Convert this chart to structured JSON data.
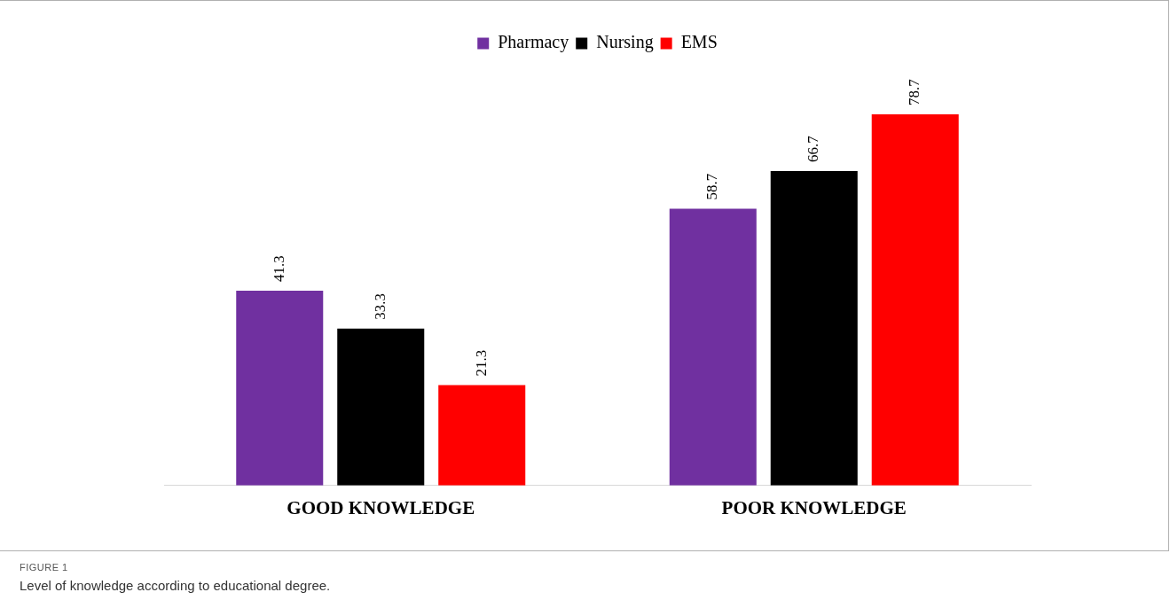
{
  "chart_data": {
    "type": "bar",
    "categories": [
      "GOOD KNOWLEDGE",
      "POOR KNOWLEDGE"
    ],
    "series": [
      {
        "name": "Pharmacy",
        "color": "#7030a0",
        "values": [
          41.3,
          58.7
        ]
      },
      {
        "name": "Nursing",
        "color": "#000000",
        "values": [
          33.3,
          66.7
        ]
      },
      {
        "name": "EMS",
        "color": "#ff0000",
        "values": [
          21.3,
          78.7
        ]
      }
    ],
    "data_labels": true,
    "legend": "top",
    "grid": false,
    "tick_labels": "x",
    "annotations": [
      "FIGURE 1",
      "Level of knowledge according to educational degree."
    ]
  }
}
